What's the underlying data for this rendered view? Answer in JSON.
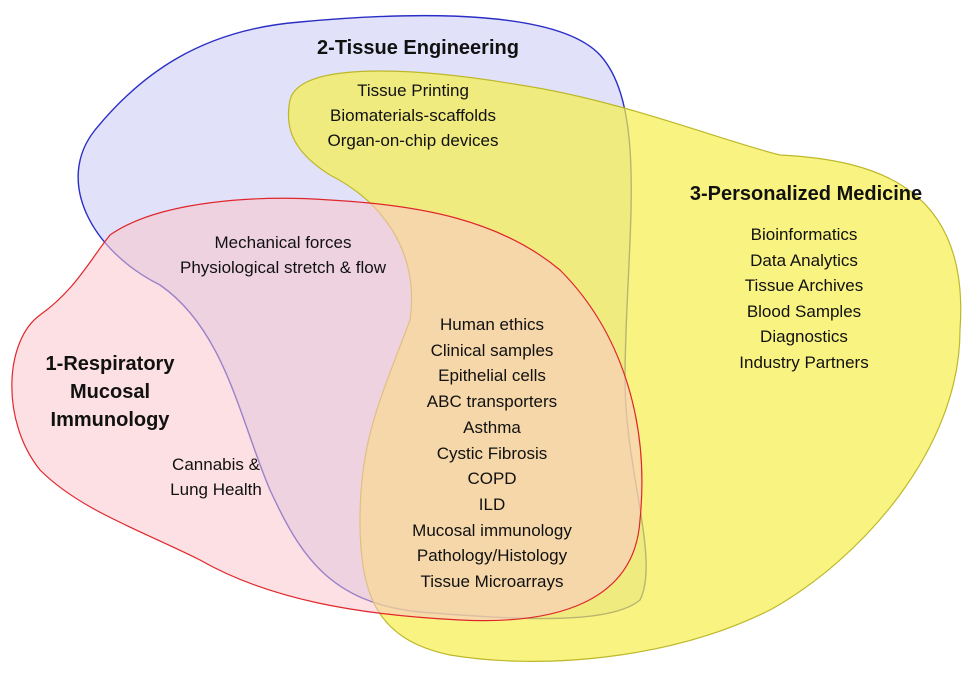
{
  "regions": {
    "respiratory": {
      "title_lines": [
        "1-Respiratory",
        "Mucosal",
        "Immunology"
      ],
      "color_fill": "#f9c6cc",
      "color_stroke": "#e0262c"
    },
    "tissue": {
      "title": "2-Tissue Engineering",
      "color_fill": "#c8c9f4",
      "color_stroke": "#2a2ec4"
    },
    "personalized": {
      "title": "3-Personalized Medicine",
      "color_fill": "#f7f04c",
      "color_stroke": "#bdb82a"
    }
  },
  "items": {
    "tissue_personalized": [
      "Tissue Printing",
      "Biomaterials-scaffolds",
      "Organ-on-chip devices"
    ],
    "tissue_respiratory": [
      "Mechanical forces",
      "Physiological stretch & flow"
    ],
    "personalized_only": [
      "Bioinformatics",
      "Data Analytics",
      "Tissue Archives",
      "Blood Samples",
      "Diagnostics",
      "Industry Partners"
    ],
    "respiratory_only": [
      "Cannabis &",
      "Lung Health"
    ],
    "all_three": [
      "Human ethics",
      "Clinical samples",
      "Epithelial cells",
      "ABC transporters",
      "Asthma",
      "Cystic Fibrosis",
      "COPD",
      "ILD",
      "Mucosal immunology",
      "Pathology/Histology",
      "Tissue Microarrays"
    ]
  }
}
